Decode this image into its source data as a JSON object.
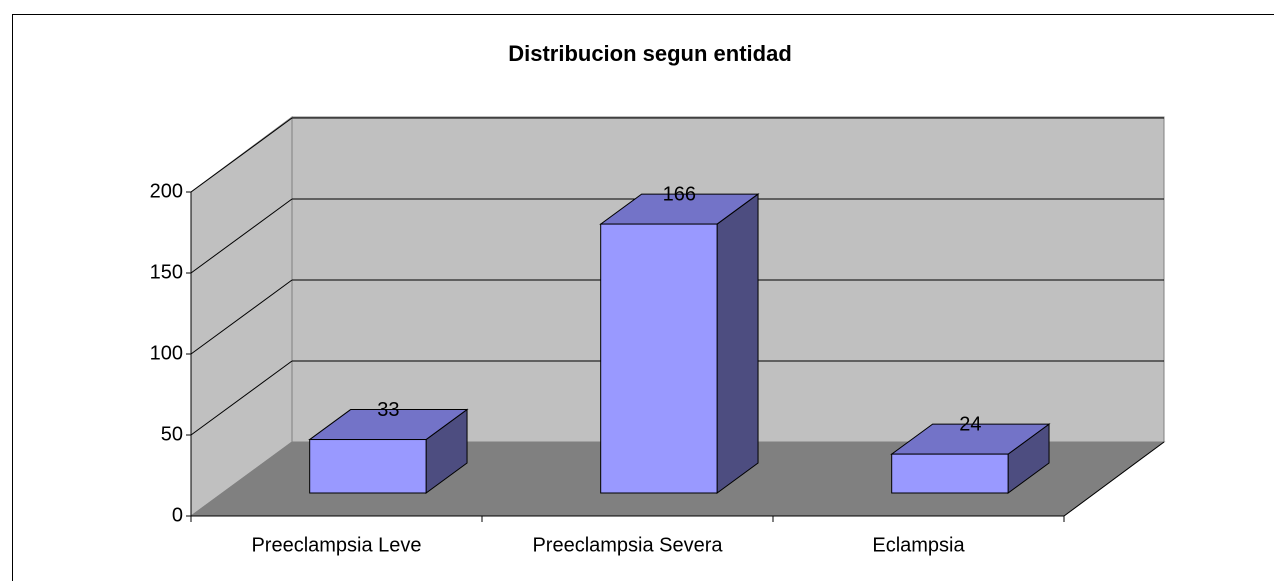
{
  "chart_data": {
    "type": "bar",
    "title": "Distribucion segun  entidad",
    "categories": [
      "Preeclampsia Leve",
      "Preeclampsia Severa",
      "Eclampsia"
    ],
    "values": [
      33,
      166,
      24
    ],
    "color": "#9999ff",
    "ylim": [
      0,
      200
    ],
    "yticks": [
      0,
      50,
      100,
      150,
      200
    ],
    "grid": true
  }
}
